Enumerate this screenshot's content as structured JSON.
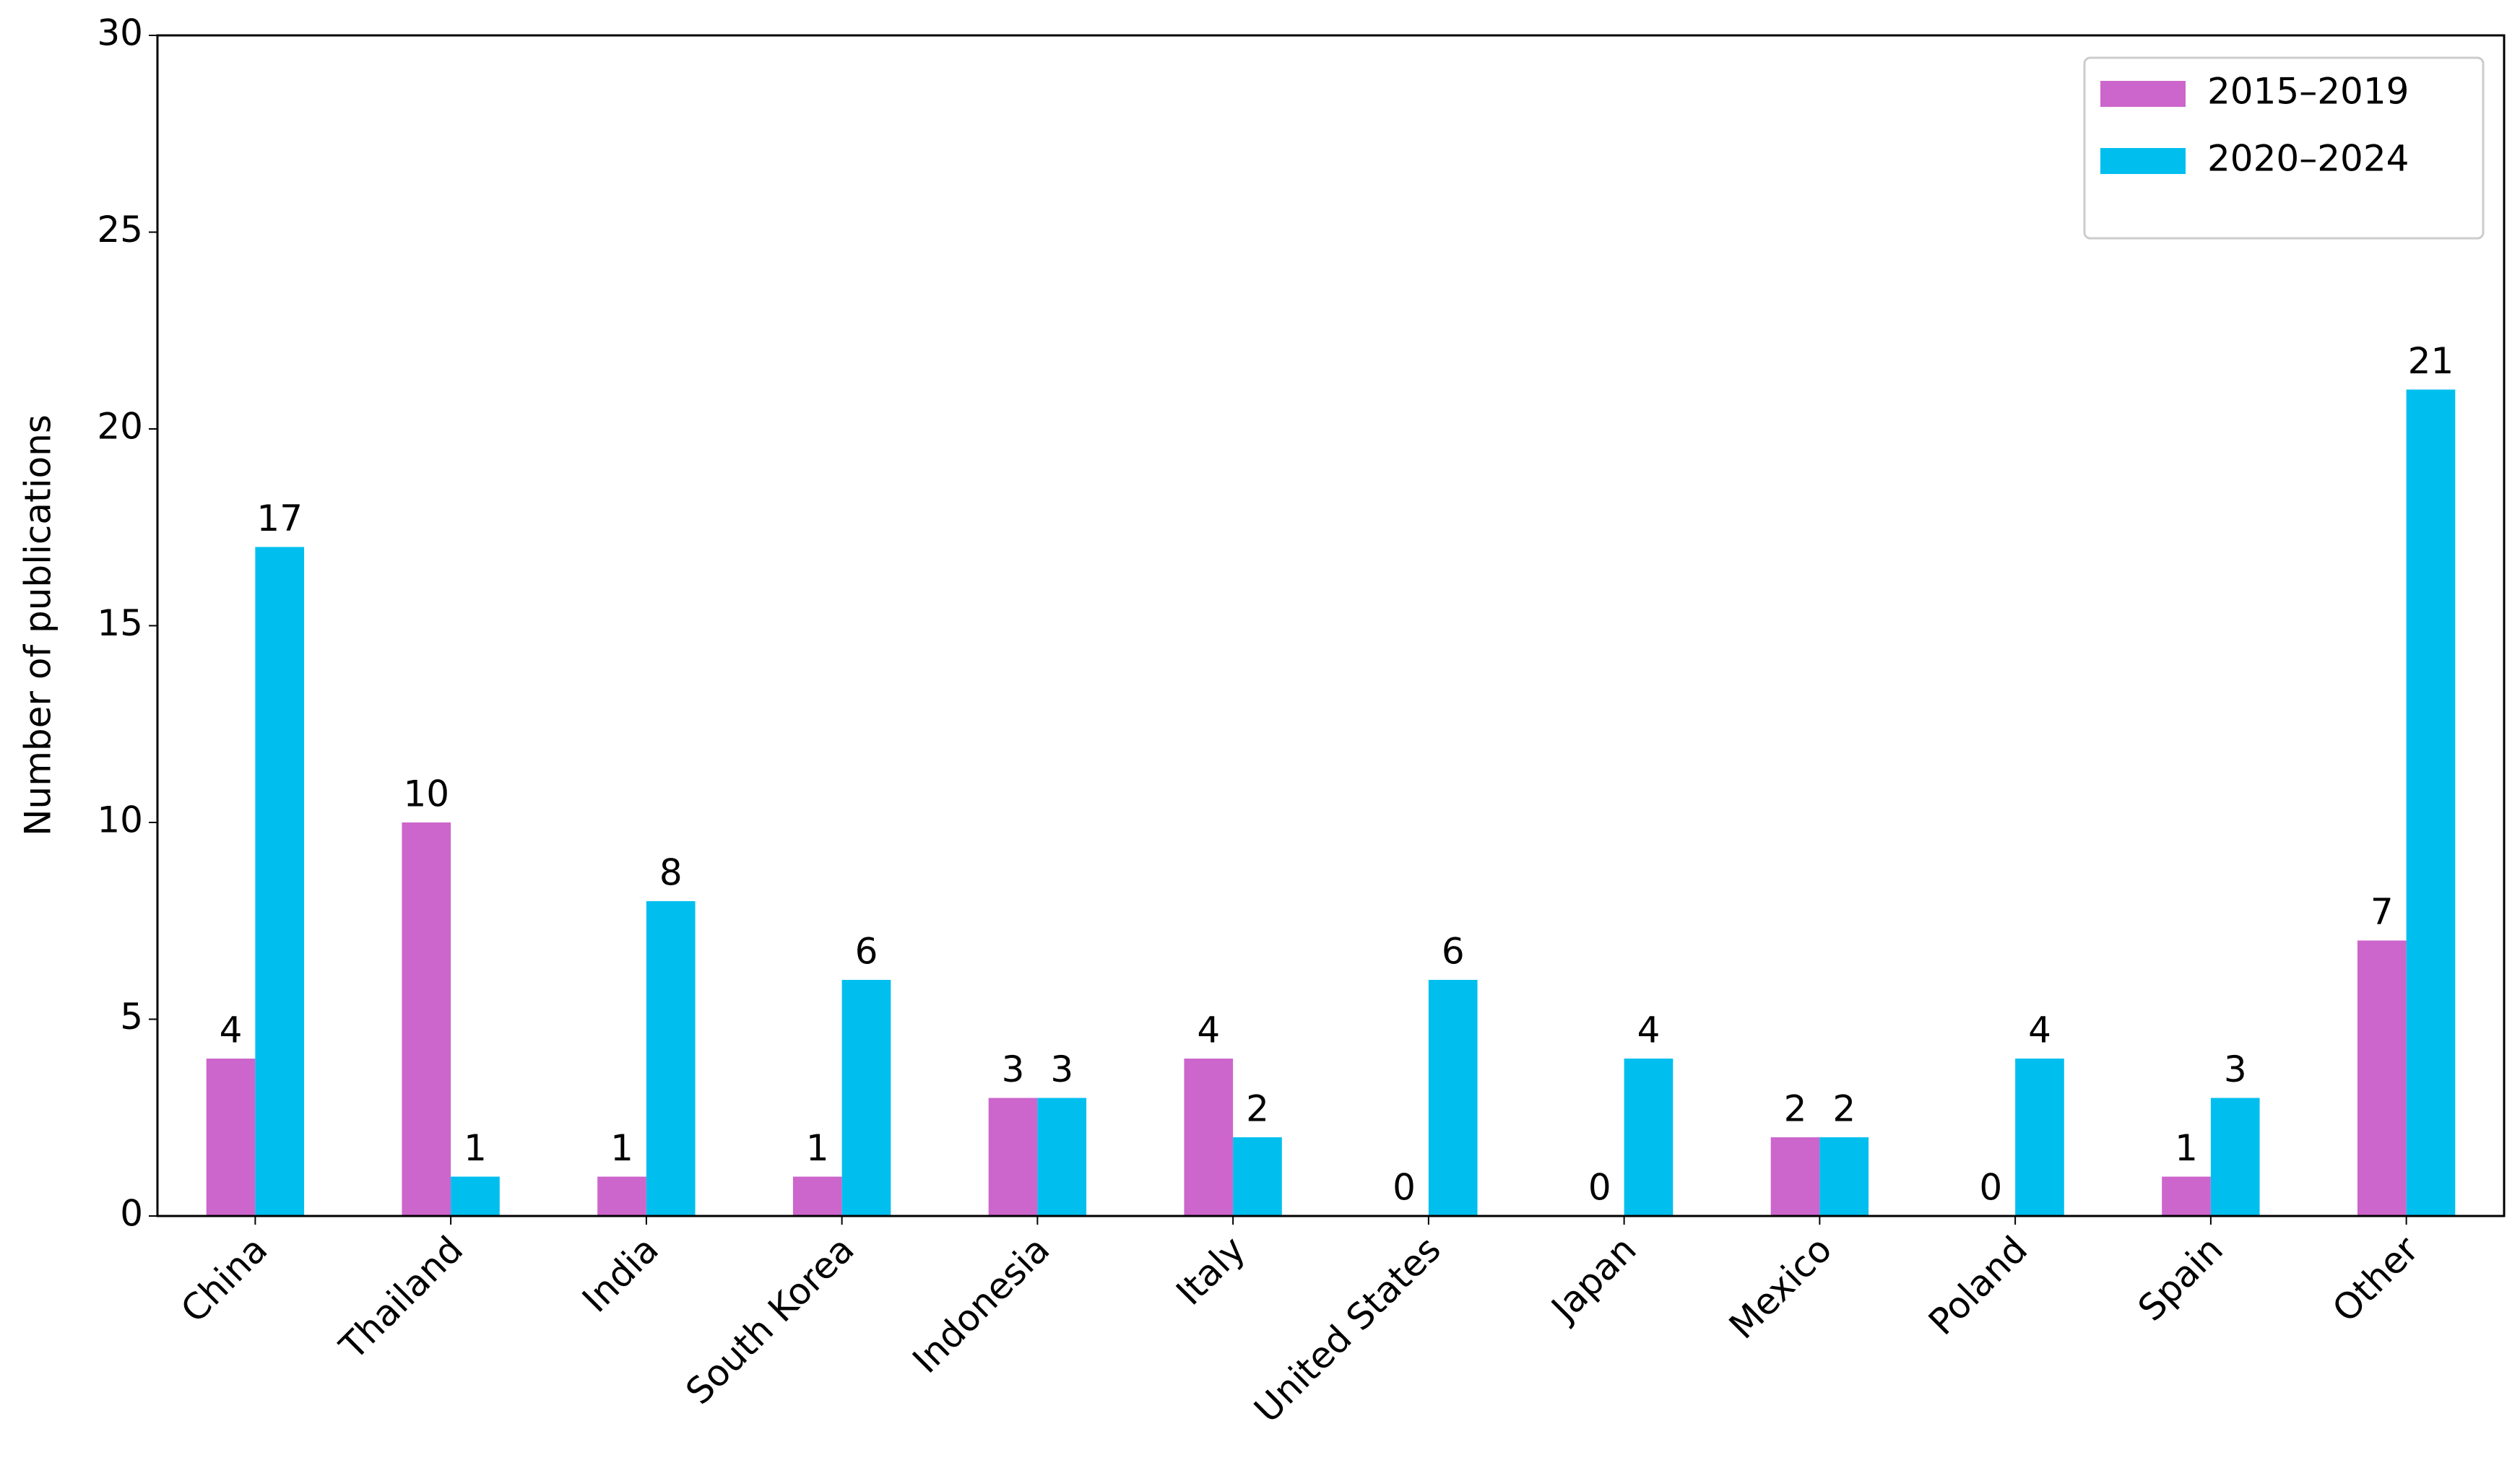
{
  "chart_data": {
    "type": "bar",
    "y_label": "Number of publications",
    "categories": [
      "China",
      "Thailand",
      "India",
      "South Korea",
      "Indonesia",
      "Italy",
      "United States",
      "Japan",
      "Mexico",
      "Poland",
      "Spain",
      "Other"
    ],
    "series": [
      {
        "name": "2015–2019",
        "color": "#cc66cc",
        "values": [
          4,
          10,
          1,
          1,
          3,
          4,
          0,
          0,
          2,
          0,
          1,
          7
        ]
      },
      {
        "name": "2020–2024",
        "color": "#00bfef",
        "values": [
          17,
          1,
          8,
          6,
          3,
          2,
          6,
          4,
          2,
          4,
          3,
          21
        ]
      }
    ],
    "ylim": [
      0,
      30
    ],
    "yticks": [
      0,
      5,
      10,
      15,
      20,
      25,
      30
    ],
    "legend": "upper right",
    "grid": false
  }
}
